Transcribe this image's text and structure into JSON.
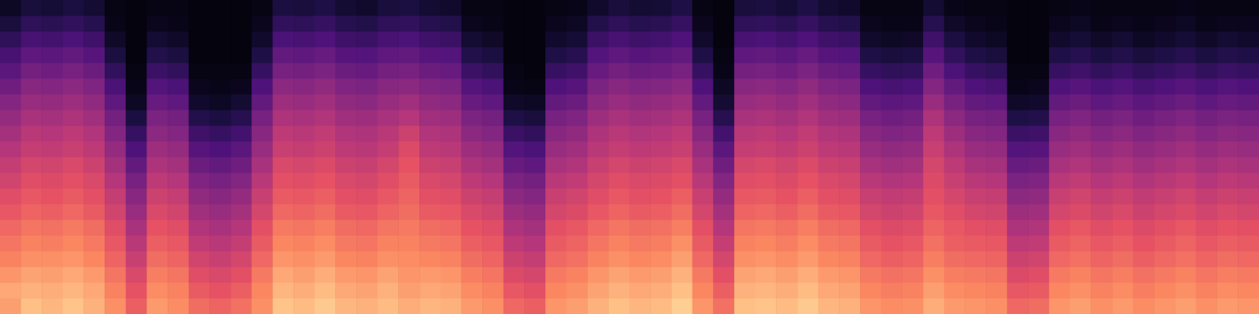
{
  "chart_data": {
    "type": "heatmap",
    "color": "magma",
    "tick_labels": false,
    "value_range": [
      0,
      100
    ],
    "cells": [
      [
        80,
        87,
        85,
        88,
        84,
        77,
        66,
        79,
        76,
        69,
        67,
        70,
        77,
        88,
        86,
        89,
        85,
        84,
        86,
        83,
        85,
        84,
        79,
        77,
        68,
        66,
        78,
        80,
        84,
        87,
        85,
        86,
        90,
        78,
        70,
        87,
        88,
        86,
        89,
        85,
        84,
        78,
        76,
        77,
        83,
        79,
        78,
        77,
        68,
        69,
        78,
        80,
        77,
        79,
        76,
        78,
        80,
        77,
        79,
        78
      ],
      [
        82,
        84,
        83,
        85,
        82,
        74,
        63,
        76,
        74,
        65,
        63,
        66,
        75,
        85,
        83,
        86,
        82,
        81,
        84,
        80,
        82,
        81,
        76,
        74,
        64,
        62,
        75,
        77,
        81,
        84,
        82,
        83,
        87,
        75,
        66,
        84,
        85,
        83,
        86,
        82,
        81,
        75,
        73,
        74,
        80,
        76,
        75,
        74,
        64,
        65,
        75,
        77,
        74,
        76,
        73,
        75,
        77,
        74,
        76,
        75
      ],
      [
        78,
        81,
        80,
        82,
        79,
        71,
        59,
        73,
        71,
        61,
        59,
        62,
        72,
        82,
        80,
        83,
        79,
        78,
        81,
        78,
        79,
        78,
        73,
        71,
        60,
        58,
        72,
        74,
        78,
        81,
        79,
        80,
        84,
        72,
        62,
        81,
        82,
        80,
        83,
        79,
        78,
        72,
        70,
        71,
        77,
        73,
        72,
        71,
        60,
        61,
        72,
        74,
        71,
        73,
        70,
        72,
        74,
        71,
        73,
        72
      ],
      [
        74,
        77,
        77,
        78,
        75,
        67,
        55,
        69,
        67,
        57,
        55,
        58,
        68,
        78,
        77,
        79,
        75,
        74,
        77,
        76,
        75,
        74,
        69,
        67,
        56,
        54,
        68,
        70,
        74,
        77,
        75,
        76,
        80,
        68,
        58,
        77,
        78,
        76,
        79,
        75,
        74,
        68,
        66,
        67,
        73,
        69,
        68,
        67,
        56,
        57,
        68,
        70,
        67,
        69,
        66,
        68,
        70,
        67,
        69,
        68
      ],
      [
        71,
        74,
        73,
        75,
        72,
        64,
        51,
        66,
        64,
        53,
        51,
        54,
        65,
        75,
        74,
        76,
        72,
        71,
        74,
        74,
        72,
        71,
        66,
        64,
        52,
        50,
        65,
        67,
        71,
        74,
        72,
        73,
        77,
        65,
        54,
        74,
        75,
        73,
        76,
        72,
        71,
        65,
        63,
        64,
        70,
        66,
        65,
        64,
        52,
        53,
        65,
        67,
        64,
        66,
        63,
        65,
        67,
        64,
        66,
        65
      ],
      [
        68,
        71,
        70,
        72,
        69,
        61,
        47,
        63,
        61,
        49,
        47,
        50,
        62,
        72,
        71,
        73,
        69,
        68,
        71,
        72,
        69,
        68,
        63,
        61,
        48,
        46,
        62,
        64,
        68,
        71,
        69,
        70,
        73,
        62,
        50,
        71,
        72,
        70,
        73,
        69,
        68,
        62,
        60,
        61,
        67,
        64,
        62,
        61,
        48,
        49,
        62,
        64,
        61,
        63,
        60,
        62,
        64,
        61,
        63,
        62
      ],
      [
        64,
        67,
        66,
        68,
        65,
        57,
        43,
        59,
        57,
        45,
        43,
        46,
        58,
        68,
        67,
        69,
        65,
        64,
        67,
        69,
        65,
        64,
        59,
        57,
        44,
        42,
        58,
        60,
        64,
        67,
        65,
        66,
        69,
        58,
        46,
        67,
        68,
        66,
        69,
        65,
        64,
        58,
        56,
        57,
        64,
        61,
        58,
        57,
        44,
        45,
        58,
        60,
        57,
        59,
        56,
        58,
        60,
        57,
        59,
        58
      ],
      [
        61,
        64,
        63,
        65,
        62,
        54,
        39,
        56,
        54,
        41,
        39,
        42,
        55,
        65,
        64,
        66,
        62,
        61,
        64,
        67,
        62,
        61,
        56,
        54,
        40,
        38,
        55,
        57,
        61,
        64,
        62,
        63,
        66,
        55,
        42,
        64,
        65,
        63,
        66,
        62,
        61,
        55,
        53,
        54,
        62,
        58,
        55,
        54,
        40,
        41,
        55,
        57,
        54,
        56,
        53,
        55,
        57,
        54,
        56,
        55
      ],
      [
        57,
        61,
        60,
        62,
        59,
        50,
        35,
        52,
        50,
        37,
        35,
        38,
        51,
        62,
        61,
        63,
        59,
        58,
        61,
        65,
        59,
        58,
        52,
        50,
        36,
        34,
        51,
        53,
        58,
        61,
        59,
        60,
        62,
        51,
        38,
        61,
        62,
        60,
        63,
        59,
        58,
        51,
        49,
        50,
        60,
        55,
        51,
        50,
        36,
        37,
        51,
        53,
        50,
        52,
        49,
        51,
        53,
        50,
        52,
        51
      ],
      [
        54,
        58,
        57,
        59,
        56,
        46,
        30,
        48,
        46,
        32,
        30,
        33,
        47,
        59,
        58,
        60,
        56,
        55,
        58,
        63,
        56,
        55,
        48,
        46,
        31,
        29,
        47,
        49,
        55,
        58,
        56,
        57,
        59,
        47,
        33,
        58,
        59,
        57,
        60,
        56,
        55,
        47,
        45,
        46,
        58,
        52,
        47,
        46,
        31,
        32,
        47,
        49,
        46,
        48,
        45,
        47,
        49,
        46,
        48,
        47
      ],
      [
        50,
        54,
        53,
        55,
        52,
        42,
        25,
        44,
        42,
        27,
        25,
        28,
        43,
        55,
        54,
        56,
        52,
        51,
        54,
        60,
        52,
        51,
        44,
        42,
        26,
        24,
        43,
        45,
        51,
        54,
        52,
        53,
        55,
        43,
        28,
        54,
        55,
        53,
        56,
        52,
        51,
        43,
        41,
        42,
        55,
        48,
        43,
        42,
        26,
        27,
        43,
        45,
        42,
        44,
        41,
        43,
        45,
        42,
        44,
        43
      ],
      [
        46,
        51,
        50,
        52,
        49,
        38,
        19,
        40,
        38,
        21,
        19,
        22,
        39,
        52,
        51,
        53,
        49,
        48,
        51,
        56,
        49,
        48,
        40,
        38,
        20,
        18,
        39,
        41,
        48,
        51,
        49,
        50,
        52,
        39,
        22,
        51,
        52,
        50,
        53,
        49,
        48,
        39,
        37,
        38,
        52,
        44,
        39,
        38,
        20,
        21,
        39,
        41,
        38,
        40,
        37,
        39,
        41,
        38,
        40,
        39
      ],
      [
        42,
        47,
        46,
        48,
        45,
        34,
        12,
        36,
        34,
        14,
        12,
        15,
        35,
        48,
        47,
        49,
        45,
        44,
        47,
        50,
        45,
        44,
        36,
        34,
        13,
        11,
        35,
        37,
        44,
        47,
        45,
        46,
        48,
        35,
        15,
        47,
        48,
        46,
        49,
        45,
        44,
        35,
        33,
        34,
        48,
        40,
        35,
        34,
        13,
        14,
        35,
        37,
        34,
        36,
        33,
        35,
        37,
        34,
        36,
        35
      ],
      [
        38,
        43,
        42,
        44,
        41,
        29,
        6,
        31,
        29,
        8,
        6,
        9,
        30,
        44,
        43,
        45,
        41,
        40,
        43,
        45,
        41,
        40,
        31,
        29,
        7,
        6,
        30,
        32,
        40,
        43,
        41,
        42,
        44,
        30,
        9,
        43,
        44,
        42,
        45,
        41,
        40,
        30,
        28,
        29,
        43,
        35,
        30,
        29,
        7,
        8,
        30,
        32,
        29,
        31,
        28,
        30,
        32,
        29,
        31,
        30
      ],
      [
        33,
        39,
        38,
        40,
        37,
        24,
        4,
        26,
        24,
        5,
        4,
        5,
        25,
        40,
        39,
        41,
        37,
        36,
        39,
        40,
        37,
        36,
        26,
        24,
        4,
        3,
        25,
        27,
        36,
        39,
        37,
        38,
        40,
        25,
        6,
        39,
        40,
        38,
        41,
        37,
        36,
        25,
        23,
        24,
        38,
        30,
        25,
        23,
        4,
        5,
        25,
        27,
        24,
        26,
        23,
        25,
        27,
        24,
        26,
        25
      ],
      [
        28,
        34,
        33,
        35,
        32,
        18,
        3,
        20,
        18,
        3,
        3,
        3,
        19,
        35,
        34,
        36,
        32,
        31,
        34,
        35,
        32,
        31,
        20,
        18,
        3,
        2,
        19,
        21,
        31,
        34,
        32,
        33,
        35,
        19,
        4,
        34,
        35,
        33,
        36,
        32,
        31,
        19,
        17,
        18,
        33,
        24,
        19,
        17,
        3,
        3,
        19,
        21,
        18,
        20,
        17,
        19,
        21,
        18,
        20,
        19
      ],
      [
        23,
        29,
        28,
        30,
        27,
        12,
        2,
        14,
        12,
        2,
        2,
        2,
        13,
        30,
        29,
        31,
        27,
        26,
        29,
        30,
        27,
        26,
        14,
        12,
        2,
        2,
        13,
        15,
        26,
        29,
        27,
        28,
        30,
        13,
        3,
        29,
        30,
        28,
        31,
        27,
        26,
        13,
        11,
        12,
        27,
        18,
        13,
        11,
        2,
        2,
        13,
        15,
        12,
        14,
        11,
        13,
        15,
        12,
        14,
        13
      ],
      [
        17,
        23,
        22,
        24,
        21,
        7,
        2,
        9,
        7,
        2,
        2,
        2,
        8,
        24,
        23,
        25,
        21,
        20,
        23,
        24,
        21,
        20,
        9,
        7,
        2,
        2,
        8,
        10,
        20,
        23,
        21,
        22,
        25,
        8,
        2,
        23,
        24,
        22,
        25,
        21,
        20,
        8,
        6,
        7,
        21,
        12,
        8,
        6,
        2,
        2,
        8,
        10,
        7,
        9,
        6,
        8,
        10,
        7,
        9,
        8
      ],
      [
        11,
        17,
        16,
        18,
        15,
        4,
        2,
        5,
        4,
        2,
        2,
        2,
        5,
        18,
        17,
        19,
        15,
        14,
        17,
        18,
        15,
        14,
        5,
        4,
        2,
        2,
        5,
        6,
        14,
        17,
        15,
        16,
        19,
        5,
        2,
        17,
        18,
        16,
        19,
        15,
        14,
        5,
        4,
        4,
        15,
        7,
        5,
        4,
        2,
        2,
        5,
        6,
        4,
        5,
        4,
        5,
        6,
        4,
        5,
        5
      ],
      [
        6,
        11,
        10,
        12,
        9,
        3,
        2,
        3,
        3,
        2,
        2,
        2,
        3,
        12,
        11,
        13,
        9,
        8,
        11,
        12,
        9,
        8,
        3,
        3,
        2,
        2,
        3,
        4,
        8,
        11,
        9,
        10,
        13,
        3,
        2,
        11,
        12,
        10,
        13,
        9,
        8,
        3,
        3,
        3,
        9,
        4,
        3,
        3,
        2,
        2,
        3,
        4,
        3,
        3,
        3,
        3,
        4,
        3,
        3,
        3
      ]
    ]
  }
}
